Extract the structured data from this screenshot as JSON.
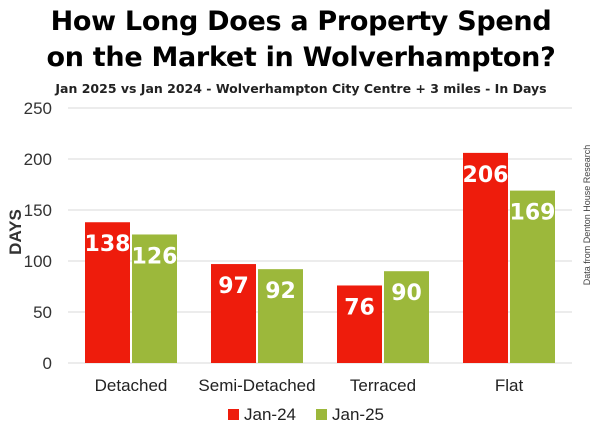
{
  "title_line1": "How Long Does a Property Spend",
  "title_line2": "on the Market in Wolverhampton?",
  "subtitle": "Jan 2025 vs Jan 2024 - Wolverhampton City Centre + 3 miles - In Days",
  "source_note": "Data from Denton House Research",
  "colors": {
    "jan24": "#ee1c0c",
    "jan25": "#9cb83b"
  },
  "chart_data": {
    "type": "bar",
    "categories": [
      "Detached",
      "Semi-Detached",
      "Terraced",
      "Flat"
    ],
    "series": [
      {
        "name": "Jan-24",
        "values": [
          138,
          97,
          76,
          206
        ],
        "labels": [
          "138",
          "97",
          "76",
          "206"
        ]
      },
      {
        "name": "Jan-25",
        "values": [
          126,
          92,
          90,
          169
        ],
        "labels": [
          "126",
          "92",
          "90",
          "169"
        ]
      }
    ],
    "ylabel": "DAYS",
    "ylim": [
      0,
      250
    ],
    "yticks": [
      "0",
      "50",
      "100",
      "150",
      "200",
      "250"
    ],
    "grid": true,
    "legend": "bottom"
  }
}
